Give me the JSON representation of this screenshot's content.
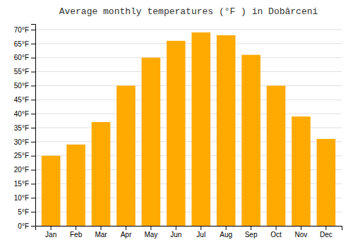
{
  "chart_data": {
    "type": "bar",
    "title": "Average monthly temperatures (°F ) in Dobârceni",
    "categories": [
      "Jan",
      "Feb",
      "Mar",
      "Apr",
      "May",
      "Jun",
      "Jul",
      "Aug",
      "Sep",
      "Oct",
      "Nov",
      "Dec"
    ],
    "values": [
      25,
      29,
      37,
      50,
      60,
      66,
      69,
      68,
      61,
      50,
      39,
      31
    ],
    "color": "#FFAA00",
    "ylim": [
      0,
      72
    ],
    "yticks": [
      {
        "value": 0,
        "label": "0°F"
      },
      {
        "value": 5,
        "label": "5°F"
      },
      {
        "value": 10,
        "label": "10°F"
      },
      {
        "value": 15,
        "label": "15°F"
      },
      {
        "value": 20,
        "label": "20°F"
      },
      {
        "value": 25,
        "label": "25°F"
      },
      {
        "value": 30,
        "label": "30°F"
      },
      {
        "value": 35,
        "label": "35°F"
      },
      {
        "value": 40,
        "label": "40°F"
      },
      {
        "value": 45,
        "label": "45°F"
      },
      {
        "value": 50,
        "label": "50°F"
      },
      {
        "value": 55,
        "label": "55°F"
      },
      {
        "value": 60,
        "label": "60°F"
      },
      {
        "value": 65,
        "label": "65°F"
      },
      {
        "value": 70,
        "label": "70°F"
      }
    ],
    "grid": true
  }
}
